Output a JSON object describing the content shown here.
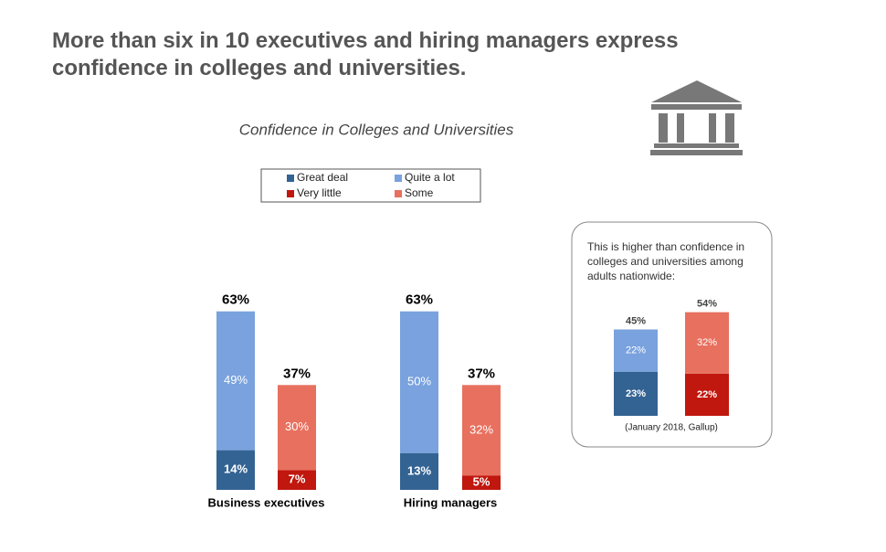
{
  "title": "More than six in 10 executives and hiring managers express confidence in colleges and universities.",
  "chart_data": [
    {
      "type": "bar",
      "stacked": true,
      "legend": true,
      "title": "Confidence in Colleges and Universities",
      "categories": [
        "Business executives",
        "Hiring managers"
      ],
      "series": [
        {
          "name": "Great deal",
          "color": "#336393",
          "values": [
            14,
            13
          ],
          "value_labels": [
            "14%",
            "13%"
          ]
        },
        {
          "name": "Quite a lot",
          "color": "#79a2de",
          "values": [
            49,
            50
          ],
          "value_labels": [
            "49%",
            "50%"
          ]
        },
        {
          "name": "Very little",
          "color": "#c0170e",
          "values": [
            7,
            5
          ],
          "value_labels": [
            "7%",
            "5%"
          ]
        },
        {
          "name": "Some",
          "color": "#e8705f",
          "values": [
            30,
            32
          ],
          "value_labels": [
            "30%",
            "32%"
          ]
        }
      ],
      "totals": [
        [
          63,
          37
        ],
        [
          63,
          37
        ]
      ],
      "total_labels": [
        [
          "63%",
          "37%"
        ],
        [
          "63%",
          "37%"
        ]
      ]
    },
    {
      "type": "bar",
      "stacked": true,
      "annotation": "This is higher than confidence in colleges and universities among adults nationwide:",
      "note": "(January 2018, Gallup)",
      "categories": [
        null
      ],
      "series": [
        {
          "name": "Great deal",
          "color": "#336393",
          "values": [
            23
          ],
          "value_labels": [
            "23%"
          ]
        },
        {
          "name": "Quite a lot",
          "color": "#79a2de",
          "values": [
            22
          ],
          "value_labels": [
            "22%"
          ]
        },
        {
          "name": "Very little",
          "color": "#c0170e",
          "values": [
            22
          ],
          "value_labels": [
            "22%"
          ]
        },
        {
          "name": "Some",
          "color": "#e8705f",
          "values": [
            32
          ],
          "value_labels": [
            "32%"
          ]
        }
      ],
      "totals": [
        [
          45,
          54
        ]
      ],
      "total_labels": [
        [
          "45%",
          "54%"
        ]
      ]
    }
  ]
}
